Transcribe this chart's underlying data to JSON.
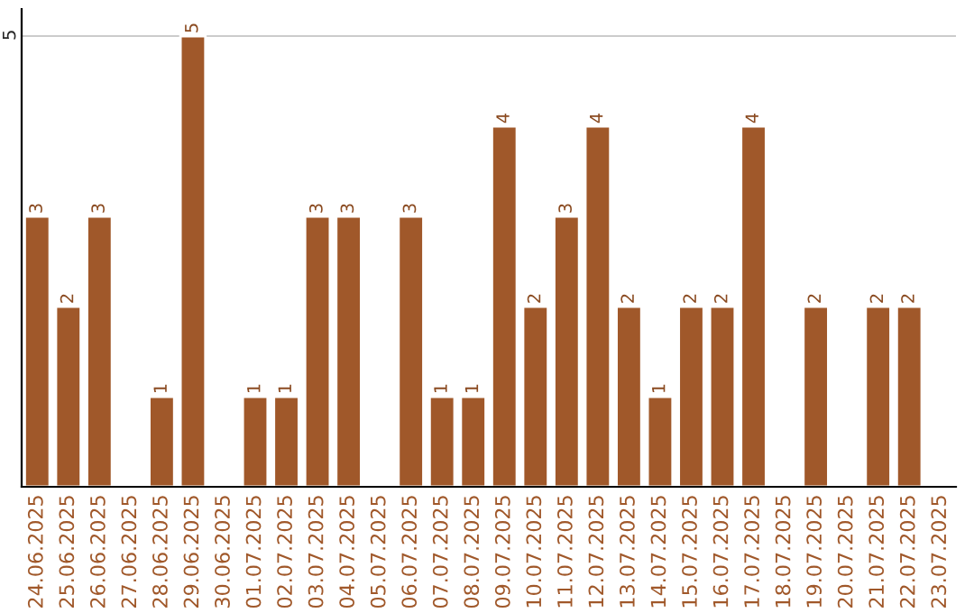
{
  "chart_data": {
    "type": "bar",
    "categories": [
      "24.06.2025",
      "25.06.2025",
      "26.06.2025",
      "27.06.2025",
      "28.06.2025",
      "29.06.2025",
      "30.06.2025",
      "01.07.2025",
      "02.07.2025",
      "03.07.2025",
      "04.07.2025",
      "05.07.2025",
      "06.07.2025",
      "07.07.2025",
      "08.07.2025",
      "09.07.2025",
      "10.07.2025",
      "11.07.2025",
      "12.07.2025",
      "13.07.2025",
      "14.07.2025",
      "15.07.2025",
      "16.07.2025",
      "17.07.2025",
      "18.07.2025",
      "19.07.2025",
      "20.07.2025",
      "21.07.2025",
      "22.07.2025",
      "23.07.2025"
    ],
    "values": [
      3,
      2,
      3,
      null,
      1,
      5,
      null,
      1,
      1,
      3,
      3,
      null,
      3,
      1,
      1,
      4,
      2,
      3,
      4,
      2,
      1,
      2,
      2,
      4,
      null,
      2,
      null,
      2,
      2,
      null
    ],
    "color": "#a0582a",
    "data_labels": true,
    "ylim": [
      0,
      5.3
    ],
    "yticks": [
      5
    ],
    "grid": "y",
    "legend": false
  }
}
